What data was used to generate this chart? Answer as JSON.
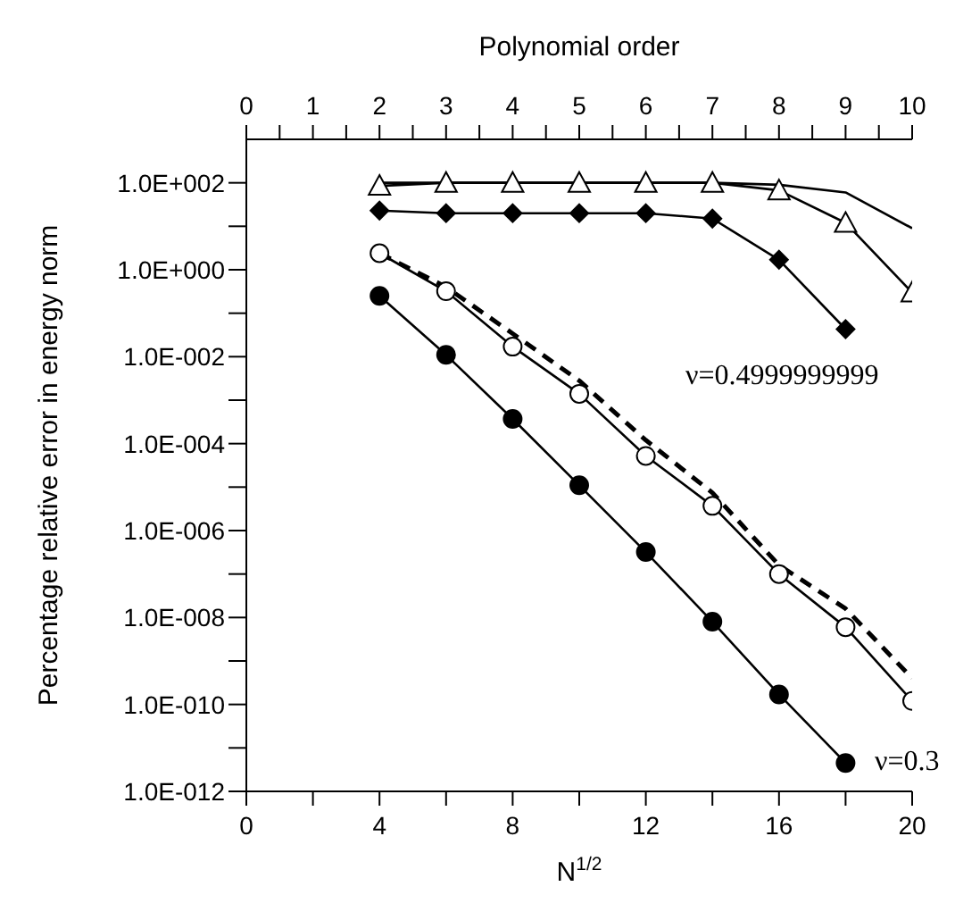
{
  "chart_data": {
    "type": "line",
    "xlabel": "N$^{1/2}$",
    "x2label": "Polynomial order",
    "ylabel": "Percentage relative error in energy norm",
    "x": [
      4,
      6,
      8,
      10,
      12,
      14,
      16,
      18,
      20
    ],
    "series": [
      {
        "color": "#000000",
        "marker": "triangle",
        "values": [
          85,
          100,
          100,
          100,
          100,
          100,
          67,
          12,
          0.3
        ]
      },
      {
        "color": "#000000",
        "marker": "none",
        "values": [
          100,
          100,
          100,
          100,
          100,
          100,
          90,
          60,
          9
        ]
      },
      {
        "color": "#000000",
        "marker": "diamond",
        "values": [
          23,
          20,
          20,
          20,
          20,
          15,
          1.7,
          0.043,
          null
        ]
      },
      {
        "color": "#000000",
        "marker": "none",
        "line_style": "dashed",
        "values": [
          2.4,
          0.4,
          0.034,
          0.0028,
          0.00012,
          7.4e-06,
          1.6e-07,
          1.6e-08,
          4e-10
        ]
      },
      {
        "color": "#000000",
        "marker": "circle",
        "values": [
          2.4,
          0.32,
          0.017,
          0.0014,
          5.2e-05,
          3.7e-06,
          1e-07,
          6e-09,
          1.2e-10
        ]
      },
      {
        "color": "#000000",
        "marker": "circle",
        "values": [
          0.25,
          0.011,
          0.00037,
          1.1e-05,
          3.2e-07,
          8e-09,
          1.7e-10,
          4.5e-12,
          null
        ]
      }
    ],
    "log": "y",
    "grid": false,
    "legend": false,
    "xlim": [
      0,
      20
    ],
    "xticks": [
      0,
      {
        "value": 2,
        "label": null
      },
      4,
      {
        "value": 6,
        "label": null
      },
      8,
      {
        "value": 10,
        "label": null
      },
      12,
      {
        "value": 14,
        "label": null
      },
      16,
      {
        "value": 18,
        "label": null
      },
      20
    ],
    "x2lim": [
      0,
      10
    ],
    "x2ticks": [
      0,
      {
        "value": 0.5,
        "label": null
      },
      1,
      {
        "value": 1.5,
        "label": null
      },
      2,
      {
        "value": 2.5,
        "label": null
      },
      3,
      {
        "value": 3.5,
        "label": null
      },
      4,
      {
        "value": 4.5,
        "label": null
      },
      5,
      {
        "value": 5.5,
        "label": null
      },
      6,
      {
        "value": 6.5,
        "label": null
      },
      7,
      {
        "value": 7.5,
        "label": null
      },
      8,
      {
        "value": 8.5,
        "label": null
      },
      9,
      {
        "value": 9.5,
        "label": null
      },
      10
    ],
    "ylim": [
      1e-12,
      1000
    ],
    "yticks": [
      {
        "value": 1e-12,
        "label": "1.0E-012"
      },
      {
        "value": 1e-11,
        "label": null
      },
      {
        "value": 1e-10,
        "label": "1.0E-010"
      },
      {
        "value": 1e-09,
        "label": null
      },
      {
        "value": 1e-08,
        "label": "1.0E-008"
      },
      {
        "value": 1e-07,
        "label": null
      },
      {
        "value": 1e-06,
        "label": "1.0E-006"
      },
      {
        "value": 1e-05,
        "label": null
      },
      {
        "value": 0.0001,
        "label": "1.0E-004"
      },
      {
        "value": 0.001,
        "label": null
      },
      {
        "value": 0.01,
        "label": "1.0E-002"
      },
      {
        "value": 0.1,
        "label": null
      },
      {
        "value": 1,
        "label": "1.0E+000"
      },
      {
        "value": 10,
        "label": null
      },
      {
        "value": 100,
        "label": "1.0E+002"
      }
    ],
    "annotations": [
      "ν=0.4999999999",
      "ν=0.3"
    ]
  }
}
